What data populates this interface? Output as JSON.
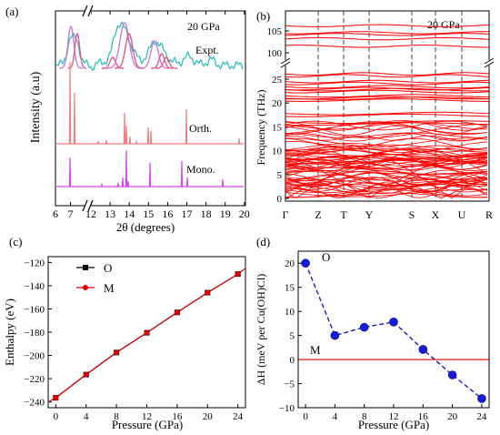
{
  "colors": {
    "expt": "#2fbfbf",
    "orth": "#f08080",
    "mono": "#d946ef",
    "fit_pink": "#e05a8a",
    "fit_violet": "#c77ddc",
    "band": "#ff0000",
    "enthalpy_O": "#000000",
    "enthalpy_M": "#e00000",
    "dH_points": "#1a1adb",
    "dH_line": "#1a1acc",
    "ref_line": "#e00000"
  },
  "panels": {
    "a": {
      "label": "(a)",
      "pressure": "20 GPa",
      "ylabel": "Intensity (a.u)",
      "xlabel": "2θ (degrees)",
      "ticks_left": [
        "6",
        "7",
        "8"
      ],
      "ticks_right": [
        "12",
        "13",
        "14",
        "15",
        "16",
        "17",
        "18",
        "19",
        "20"
      ],
      "trace_labels": {
        "expt": "Expt.",
        "orth": "Orth.",
        "mono": "Mono."
      }
    },
    "b": {
      "label": "(b)",
      "pressure": "20 GPa",
      "ylabel": "Frequency (THz)",
      "kpoints": [
        "Γ",
        "Z",
        "T",
        "Y",
        "S",
        "X",
        "U",
        "R"
      ],
      "yticks_low": [
        "0",
        "5",
        "10",
        "15",
        "20",
        "25"
      ],
      "yticks_high": [
        "100",
        "105"
      ]
    },
    "c": {
      "label": "(c)",
      "legend": [
        "O",
        "M"
      ]
    },
    "d": {
      "label": "(d)",
      "O_label": "O",
      "M_label": "M"
    }
  },
  "chart_data": [
    {
      "type": "line",
      "title": "",
      "xlabel": "2θ (degrees)",
      "ylabel": "Intensity (a.u)",
      "x_segments": [
        [
          6,
          8
        ],
        [
          12,
          20
        ]
      ],
      "series": [
        {
          "name": "Expt.",
          "x": [
            6.1,
            6.5,
            6.8,
            7.0,
            7.2,
            7.6,
            12.0,
            12.8,
            13.6,
            13.9,
            14.2,
            15.3,
            16.0,
            17.0,
            18.5,
            20.0
          ]
        },
        {
          "name": "Orth.",
          "peaks": [
            [
              7.05,
              1.0
            ],
            [
              7.3,
              0.9
            ],
            [
              13.7,
              0.55
            ],
            [
              13.9,
              0.35
            ],
            [
              15.0,
              0.3
            ],
            [
              15.1,
              0.25
            ],
            [
              17.2,
              0.6
            ],
            [
              19.8,
              0.12
            ]
          ]
        },
        {
          "name": "Mono.",
          "peaks": [
            [
              7.0,
              0.85
            ],
            [
              13.6,
              0.3
            ],
            [
              13.9,
              1.0
            ],
            [
              15.4,
              0.55
            ],
            [
              17.0,
              0.65
            ],
            [
              17.3,
              0.2
            ],
            [
              19.0,
              0.15
            ]
          ]
        }
      ]
    },
    {
      "type": "line",
      "title": "",
      "xlabel": "",
      "ylabel": "Frequency (THz)",
      "kpath": [
        "Γ",
        "Z",
        "T",
        "Y",
        "S",
        "X",
        "U",
        "R"
      ],
      "ylim_low": [
        0,
        27
      ],
      "ylim_high": [
        98,
        108
      ],
      "bands_high": [
        106.2,
        104.6,
        104.2,
        103.2,
        101.5
      ],
      "bands_low_clusters": [
        26.1,
        24.5,
        23.4,
        22.8,
        21.5,
        21.0,
        17.8,
        16.0
      ]
    },
    {
      "type": "line",
      "title": "",
      "xlabel": "Pressure (GPa)",
      "ylabel": "Enthalpy (eV)",
      "xlim": [
        -1,
        25
      ],
      "ylim": [
        -245,
        -115
      ],
      "categories": [
        0,
        4,
        8,
        12,
        16,
        20,
        24
      ],
      "series": [
        {
          "name": "O",
          "values": [
            -236.5,
            -216.5,
            -197.5,
            -180.5,
            -163.0,
            -146.0,
            -130.0
          ]
        },
        {
          "name": "M",
          "values": [
            -236.5,
            -216.5,
            -197.5,
            -180.5,
            -163.0,
            -146.0,
            -130.0
          ]
        }
      ],
      "yticks": [
        -240,
        -220,
        -200,
        -180,
        -160,
        -140,
        -120
      ],
      "xticks": [
        0,
        4,
        8,
        12,
        16,
        20,
        24
      ]
    },
    {
      "type": "line",
      "title": "",
      "xlabel": "Pressure (GPa)",
      "ylabel": "ΔH (meV per Cu(OH)Cl)",
      "xlim": [
        -1,
        25
      ],
      "ylim": [
        -10,
        22.5
      ],
      "categories": [
        0,
        4,
        8,
        12,
        16,
        20,
        24
      ],
      "series": [
        {
          "name": "O",
          "values": [
            20.0,
            5.0,
            6.7,
            7.8,
            2.1,
            -3.2,
            -8.1
          ]
        },
        {
          "name": "M",
          "values": [
            0,
            0,
            0,
            0,
            0,
            0,
            0
          ]
        }
      ],
      "yticks": [
        -10,
        -5,
        0,
        5,
        10,
        15,
        20
      ],
      "xticks": [
        0,
        4,
        8,
        12,
        16,
        20,
        24
      ]
    }
  ]
}
